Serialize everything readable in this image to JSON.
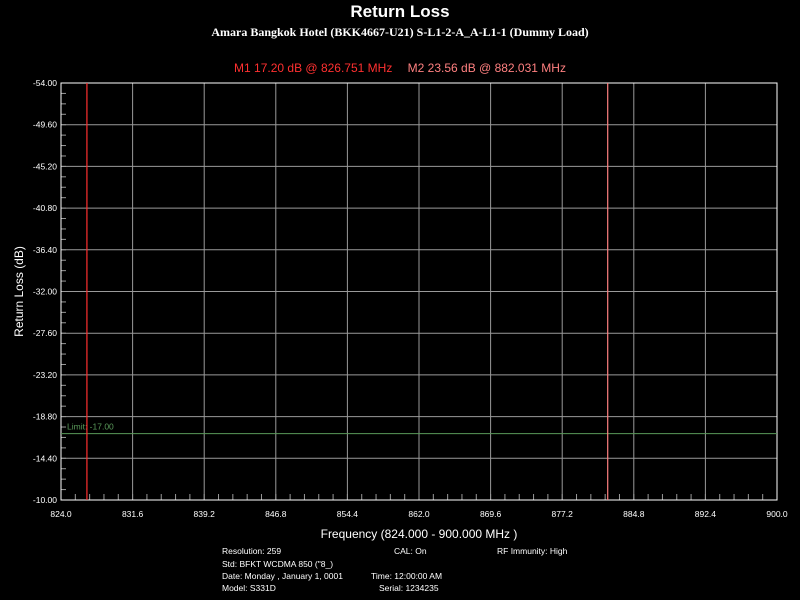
{
  "title": "Return Loss",
  "subtitle": "Amara Bangkok Hotel (BKK4667-U21) S-L1-2-A_A-L1-1 (Dummy Load)",
  "markers": [
    {
      "label": "M1  17.20 dB @ 826.751 MHz",
      "color": "#ff3030",
      "freq": 826.751,
      "value": 17.2
    },
    {
      "label": "M2  23.56 dB @ 882.031 MHz",
      "color": "#ff8080",
      "freq": 882.031,
      "value": 23.56
    }
  ],
  "chart_data": {
    "type": "line",
    "title": "Return Loss",
    "xlabel": "Frequency (824.000 - 900.000 MHz )",
    "ylabel": "Return Loss (dB)",
    "xlim": [
      824.0,
      900.0
    ],
    "ylim": [
      -54.0,
      -10.0
    ],
    "y_inverted": true,
    "x_ticks": [
      "824.0",
      "831.6",
      "839.2",
      "846.8",
      "854.4",
      "862.0",
      "869.6",
      "877.2",
      "884.8",
      "892.4",
      "900.0"
    ],
    "y_ticks": [
      "-54.00",
      "-49.60",
      "-45.20",
      "-40.80",
      "-36.40",
      "-32.00",
      "-27.60",
      "-23.20",
      "-18.80",
      "-14.40",
      "-10.00"
    ],
    "limit": {
      "value": -17.0,
      "label": "Limit: -17.00",
      "color": "#5a9a5a"
    },
    "grid": true,
    "series": []
  },
  "info": {
    "resolution": "Resolution: 259",
    "cal": "CAL: On",
    "rf_immunity": "RF Immunity: High",
    "std": "Std: BFKT WCDMA 850 (\"8_)",
    "date": "Date: Monday , January 1, 0001",
    "time": "Time: 12:00:00 AM",
    "model": "Model: S331D",
    "serial": "Serial: 1234235"
  },
  "colors": {
    "background": "#000000",
    "grid": "#9a9a9a",
    "axis_text": "#ffffff"
  }
}
